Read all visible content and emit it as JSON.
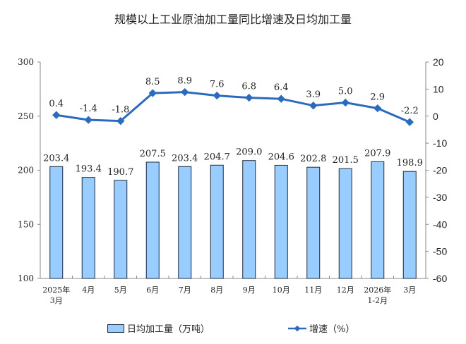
{
  "chart_data": {
    "type": "bar+line",
    "title": "规模以上工业原油加工量同比增速及日均加工量",
    "categories": [
      "2025年\n3月",
      "4月",
      "5月",
      "6月",
      "7月",
      "8月",
      "9月",
      "10月",
      "11月",
      "12月",
      "2026年\n1-2月",
      "3月"
    ],
    "series": [
      {
        "name": "日均加工量（万吨）",
        "type": "bar",
        "axis": "left",
        "values": [
          203.4,
          193.4,
          190.7,
          207.5,
          203.4,
          204.7,
          209.0,
          204.6,
          202.8,
          201.5,
          207.9,
          198.9
        ],
        "labels": [
          "203.4",
          "193.4",
          "190.7",
          "207.5",
          "203.4",
          "204.7",
          "209.0",
          "204.6",
          "202.8",
          "201.5",
          "207.9",
          "198.9"
        ]
      },
      {
        "name": "增速（%）",
        "type": "line",
        "axis": "right",
        "values": [
          0.4,
          -1.4,
          -1.8,
          8.5,
          8.9,
          7.6,
          6.8,
          6.4,
          3.9,
          5.0,
          2.9,
          -2.2
        ],
        "labels": [
          "0.4",
          "-1.4",
          "-1.8",
          "8.5",
          "8.9",
          "7.6",
          "6.8",
          "6.4",
          "3.9",
          "5.0",
          "2.9",
          "-2.2"
        ]
      }
    ],
    "ylim_left": [
      100,
      300
    ],
    "yticks_left": [
      "100",
      "150",
      "200",
      "250",
      "300"
    ],
    "ylim_right": [
      -60,
      20
    ],
    "yticks_right": [
      "-60",
      "-50",
      "-40",
      "-30",
      "-20",
      "-10",
      "0",
      "10",
      "20"
    ],
    "grid": false,
    "legend": "bottom",
    "colors": {
      "bar": "#99ccff",
      "bar_border": "#1a2a40",
      "line": "#2a6abf"
    }
  }
}
